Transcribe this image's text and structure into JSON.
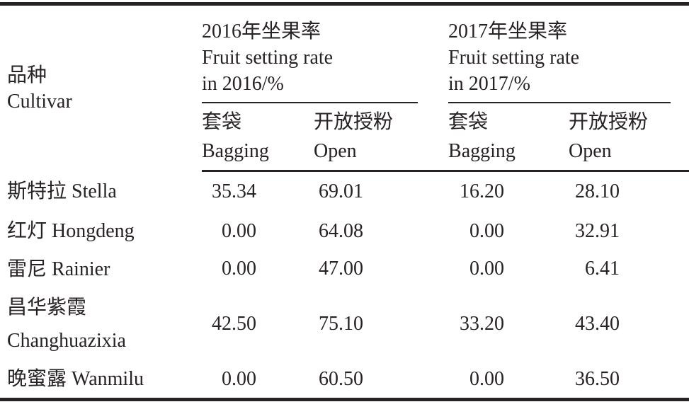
{
  "colors": {
    "text": "#272223",
    "rule": "#272223",
    "background": "#ffffff"
  },
  "table": {
    "cultivar_header": {
      "zh": "品种",
      "en": "Cultivar"
    },
    "groups": [
      {
        "title_zh": "2016年坐果率",
        "title_en1": "Fruit setting rate",
        "title_en2": "in 2016/%"
      },
      {
        "title_zh": "2017年坐果率",
        "title_en1": "Fruit setting rate",
        "title_en2": "in 2017/%"
      }
    ],
    "subheaders": [
      {
        "zh": "套袋",
        "en": "Bagging"
      },
      {
        "zh": "开放授粉",
        "en": "Open"
      },
      {
        "zh": "套袋",
        "en": "Bagging"
      },
      {
        "zh": "开放授粉",
        "en": "Open"
      }
    ],
    "rows": [
      {
        "name_zh": "斯特拉",
        "name_en": "Stella",
        "values": [
          "35.34",
          "69.01",
          "16.20",
          "28.10"
        ]
      },
      {
        "name_zh": "红灯",
        "name_en": "Hongdeng",
        "values": [
          "0.00",
          "64.08",
          "0.00",
          "32.91"
        ]
      },
      {
        "name_zh": "雷尼",
        "name_en": "Rainier",
        "values": [
          "0.00",
          "47.00",
          "0.00",
          "6.41"
        ]
      },
      {
        "name_zh": "昌华紫霞",
        "name_en": "Changhuazixia",
        "values": [
          "42.50",
          "75.10",
          "33.20",
          "43.40"
        ]
      },
      {
        "name_zh": "晚蜜露",
        "name_en": "Wanmilu",
        "values": [
          "0.00",
          "60.50",
          "0.00",
          "36.50"
        ]
      }
    ]
  }
}
